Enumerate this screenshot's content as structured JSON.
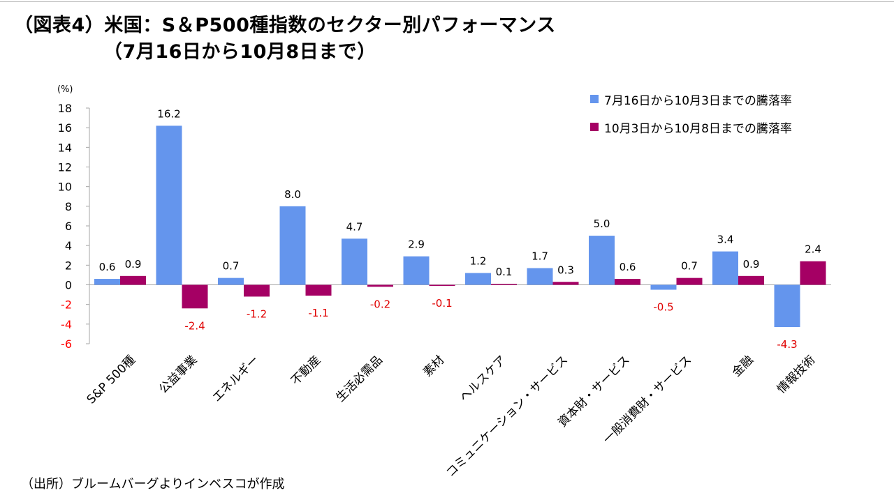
{
  "title": {
    "line1": "（図表4）米国：S＆P500種指数のセクター別パフォーマンス",
    "line2": "（7月16日から10月8日まで）"
  },
  "source": "（出所）ブルームバーグよりインベスコが作成",
  "chart_data": {
    "type": "bar",
    "ylabel": "(%)",
    "ylim": [
      -6,
      18
    ],
    "yticks": [
      18,
      16,
      14,
      12,
      10,
      8,
      6,
      4,
      2,
      0,
      -2,
      -4,
      -6
    ],
    "categories": [
      "S&P 500種",
      "公益事業",
      "エネルギー",
      "不動産",
      "生活必需品",
      "素材",
      "ヘルスケア",
      "コミュニケーション・サービス",
      "資本財・サービス",
      "一般消費財・サービス",
      "金融",
      "情報技術"
    ],
    "series": [
      {
        "name": "7月16日から10月3日までの騰落率",
        "color": "#6495ED",
        "values": [
          0.6,
          16.2,
          0.7,
          8.0,
          4.7,
          2.9,
          1.2,
          1.7,
          5.0,
          -0.5,
          3.4,
          -4.3
        ],
        "labels": [
          "0.6",
          "16.2",
          "0.7",
          "8.0",
          "4.7",
          "2.9",
          "1.2",
          "1.7",
          "5.0",
          "-0.5",
          "3.4",
          "-4.3"
        ]
      },
      {
        "name": "10月3日から10月8日までの騰落率",
        "color": "#A50064",
        "values": [
          0.9,
          -2.4,
          -1.2,
          -1.1,
          -0.2,
          -0.1,
          0.1,
          0.3,
          0.6,
          0.7,
          0.9,
          2.4
        ],
        "labels": [
          "0.9",
          "-2.4",
          "-1.2",
          "-1.1",
          "-0.2",
          "-0.1",
          "0.1",
          "0.3",
          "0.6",
          "0.7",
          "0.9",
          "2.4"
        ]
      }
    ],
    "negative_tick_color": "#FF0000",
    "negative_label_color": "#E00000"
  }
}
